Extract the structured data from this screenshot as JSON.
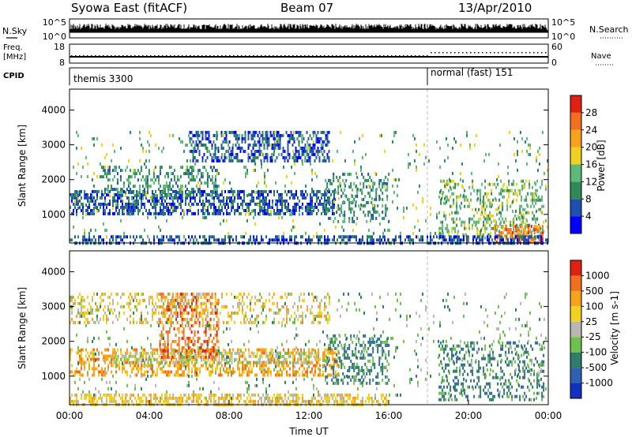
{
  "header": {
    "title": "Syowa East (fitACF)",
    "beam": "Beam 07",
    "date": "13/Apr/2010"
  },
  "panels": {
    "nsky": {
      "label": "N.Sky",
      "right_label": "N.Search",
      "ticks_left": [
        "10^5",
        "10^0"
      ],
      "ticks_right": [
        "10^5",
        "10^0"
      ]
    },
    "freq": {
      "label_line1": "Freq.",
      "label_line2": "[MHz]",
      "right_label": "Nave",
      "ticks_left": [
        "18",
        "8"
      ],
      "ticks_right": [
        "60",
        "0"
      ]
    },
    "cpid": {
      "label": "CPID",
      "segments": [
        {
          "name": "themis 3300",
          "start_hour": 0
        },
        {
          "name": "normal (fast) 151",
          "start_hour": 18.0
        }
      ]
    }
  },
  "chart_data": [
    {
      "type": "heatmap",
      "title": "",
      "quantity": "Power",
      "colorbar_label": "Power [dB]",
      "colorbar_ticks": [
        4,
        8,
        12,
        16,
        20,
        24,
        28
      ],
      "colors": [
        "#0000ff",
        "#1f4fb0",
        "#2e8b57",
        "#5fb87a",
        "#f2d020",
        "#f7a21b",
        "#f07020",
        "#e02010"
      ],
      "ylabel": "Slant Range [km]",
      "ylim": [
        180,
        4600
      ],
      "yticks": [
        1000,
        2000,
        3000,
        4000
      ],
      "xlim": [
        0,
        24
      ],
      "regions": [
        {
          "t0": 0.0,
          "t1": 13.3,
          "r0": 1000,
          "r1": 1700,
          "level": 1,
          "density": 0.55
        },
        {
          "t0": 1.5,
          "t1": 7.5,
          "r0": 1500,
          "r1": 2400,
          "level": 2,
          "density": 0.35
        },
        {
          "t0": 6.0,
          "t1": 13.0,
          "r0": 2500,
          "r1": 3400,
          "level": 1,
          "density": 0.45
        },
        {
          "t0": 12.8,
          "t1": 16.0,
          "r0": 800,
          "r1": 2200,
          "level": 2,
          "density": 0.3
        },
        {
          "t0": 18.5,
          "t1": 23.8,
          "r0": 300,
          "r1": 2000,
          "level": 3,
          "density": 0.3
        },
        {
          "t0": 21.3,
          "t1": 23.7,
          "r0": 200,
          "r1": 700,
          "level": 6,
          "density": 0.55
        },
        {
          "t0": 0.0,
          "t1": 24.0,
          "r0": 180,
          "r1": 400,
          "level": 1,
          "density": 0.5
        },
        {
          "t0": 0.0,
          "t1": 24.0,
          "r0": 400,
          "r1": 3400,
          "level": 3,
          "density": 0.05
        }
      ]
    },
    {
      "type": "heatmap",
      "title": "",
      "quantity": "Velocity",
      "colorbar_label": "Velocity [m s-1]",
      "colorbar_ticks": [
        "1000",
        "500",
        "100",
        "25",
        "-25",
        "-100",
        "-500",
        "-1000"
      ],
      "colors": [
        "#1030c0",
        "#3060b0",
        "#2e7d6a",
        "#70c050",
        "#b8b8b0",
        "#f2d020",
        "#f7a21b",
        "#f07020",
        "#e02010"
      ],
      "ylabel": "Slant Range [km]",
      "ylim": [
        180,
        4600
      ],
      "yticks": [
        1000,
        2000,
        3000,
        4000
      ],
      "xlim": [
        0,
        24
      ],
      "xticks": [
        "00:00",
        "04:00",
        "08:00",
        "12:00",
        "16:00",
        "20:00",
        "00:00"
      ],
      "xlabel": "Time UT",
      "regions": [
        {
          "t0": 0.0,
          "t1": 13.5,
          "r0": 1000,
          "r1": 1800,
          "level": 6,
          "density": 0.45
        },
        {
          "t0": 2.0,
          "t1": 12.5,
          "r0": 1400,
          "r1": 1700,
          "level": 4,
          "density": 0.45
        },
        {
          "t0": 4.5,
          "t1": 7.5,
          "r0": 1500,
          "r1": 3400,
          "level": 7,
          "density": 0.4
        },
        {
          "t0": 12.8,
          "t1": 16.0,
          "r0": 800,
          "r1": 2200,
          "level": 2,
          "density": 0.35
        },
        {
          "t0": 18.5,
          "t1": 23.8,
          "r0": 300,
          "r1": 2000,
          "level": 2,
          "density": 0.3
        },
        {
          "t0": 0.0,
          "t1": 16.0,
          "r0": 180,
          "r1": 500,
          "level": 5,
          "density": 0.55
        },
        {
          "t0": 0.0,
          "t1": 13.0,
          "r0": 2500,
          "r1": 3400,
          "level": 5,
          "density": 0.25
        },
        {
          "t0": 0.0,
          "t1": 24.0,
          "r0": 400,
          "r1": 3400,
          "level": 3,
          "density": 0.05
        }
      ]
    }
  ]
}
